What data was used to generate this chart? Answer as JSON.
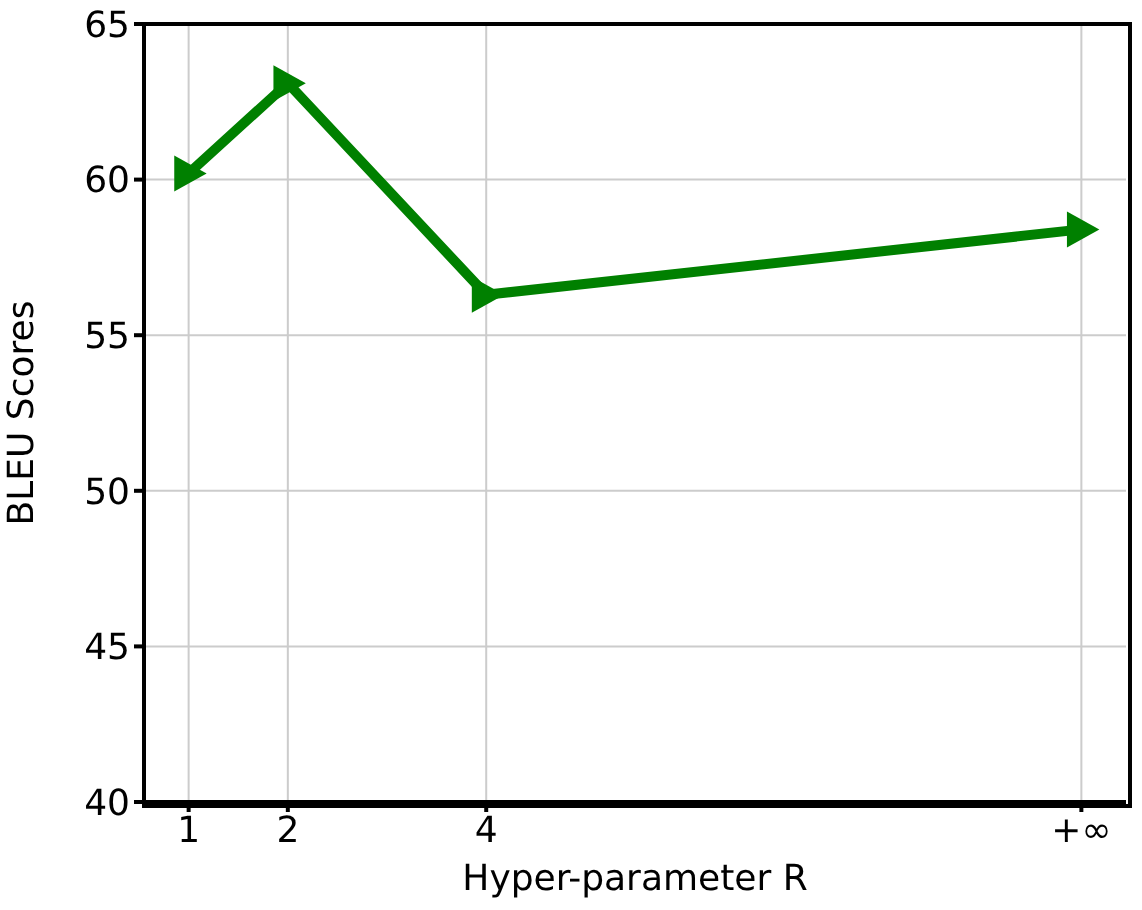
{
  "chart_data": {
    "type": "line",
    "xlabel": "Hyper-parameter R",
    "ylabel": "BLEU Scores",
    "x": [
      1,
      2,
      4,
      10
    ],
    "series": [
      {
        "color": "#008000",
        "values": [
          60.2,
          63.1,
          56.3,
          58.4
        ]
      }
    ],
    "xlim": [
      0.55,
      10.45
    ],
    "xticks": [
      1,
      2,
      4,
      {
        "value": 10,
        "label": "+∞"
      }
    ],
    "ylim": [
      40,
      65
    ],
    "yticks": [
      40,
      45,
      50,
      55,
      60,
      65
    ],
    "grid": true,
    "marker": "triangle",
    "line_style": "solid"
  }
}
